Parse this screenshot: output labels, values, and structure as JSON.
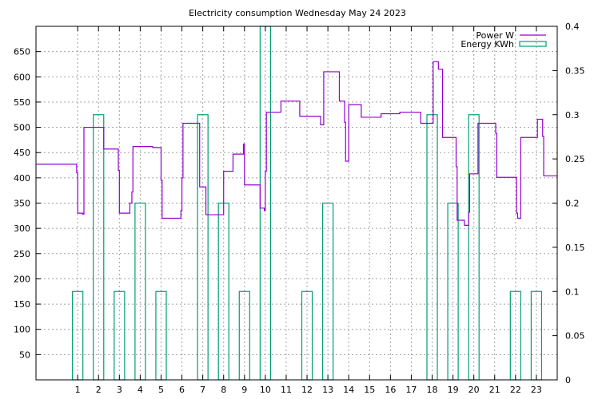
{
  "chart_data": {
    "type": "line",
    "title": "Electricity consumption Wednesday May 24 2023",
    "grid": true,
    "legend_position": "top-right",
    "x_axis": {
      "range": [
        -1,
        24
      ],
      "ticks": [
        1,
        2,
        3,
        4,
        5,
        6,
        7,
        8,
        9,
        10,
        11,
        12,
        13,
        14,
        15,
        16,
        17,
        18,
        19,
        20,
        21,
        22,
        23
      ]
    },
    "y_axis_left": {
      "range": [
        0,
        700
      ],
      "ticks": [
        50,
        100,
        150,
        200,
        250,
        300,
        350,
        400,
        450,
        500,
        550,
        600,
        650
      ]
    },
    "y_axis_right": {
      "range": [
        0,
        0.4
      ],
      "ticks": [
        "0",
        "0.05",
        "0.1",
        "0.15",
        "0.2",
        "0.25",
        "0.3",
        "0.35",
        "0.4"
      ]
    },
    "series": [
      {
        "name": "Power W",
        "axis": "left",
        "style": "steps",
        "color": "#9400d3",
        "points": [
          [
            -1,
            427
          ],
          [
            0.9,
            427
          ],
          [
            0.95,
            410
          ],
          [
            1.0,
            330
          ],
          [
            1.25,
            328
          ],
          [
            1.3,
            500
          ],
          [
            2.2,
            500
          ],
          [
            2.25,
            457
          ],
          [
            2.9,
            457
          ],
          [
            2.95,
            415
          ],
          [
            3.0,
            330
          ],
          [
            3.45,
            330
          ],
          [
            3.5,
            350
          ],
          [
            3.6,
            372
          ],
          [
            3.65,
            462
          ],
          [
            4.55,
            462
          ],
          [
            4.6,
            460
          ],
          [
            4.95,
            460
          ],
          [
            5.0,
            395
          ],
          [
            5.05,
            320
          ],
          [
            5.9,
            320
          ],
          [
            5.95,
            335
          ],
          [
            6.0,
            400
          ],
          [
            6.05,
            508
          ],
          [
            6.8,
            508
          ],
          [
            6.85,
            382
          ],
          [
            7.1,
            382
          ],
          [
            7.15,
            327
          ],
          [
            7.95,
            327
          ],
          [
            8.0,
            413
          ],
          [
            8.4,
            413
          ],
          [
            8.45,
            447
          ],
          [
            8.9,
            447
          ],
          [
            8.95,
            467
          ],
          [
            9.0,
            386
          ],
          [
            9.7,
            386
          ],
          [
            9.75,
            340
          ],
          [
            9.95,
            335
          ],
          [
            10.0,
            413
          ],
          [
            10.05,
            530
          ],
          [
            10.7,
            530
          ],
          [
            10.75,
            552
          ],
          [
            11.6,
            552
          ],
          [
            11.65,
            522
          ],
          [
            12.6,
            522
          ],
          [
            12.65,
            505
          ],
          [
            12.75,
            505
          ],
          [
            12.8,
            610
          ],
          [
            13.5,
            610
          ],
          [
            13.55,
            552
          ],
          [
            13.75,
            552
          ],
          [
            13.8,
            510
          ],
          [
            13.85,
            433
          ],
          [
            13.95,
            433
          ],
          [
            14.0,
            545
          ],
          [
            14.55,
            545
          ],
          [
            14.6,
            520
          ],
          [
            15.5,
            520
          ],
          [
            15.55,
            527
          ],
          [
            16.4,
            527
          ],
          [
            16.45,
            530
          ],
          [
            17.4,
            530
          ],
          [
            17.45,
            508
          ],
          [
            18.0,
            508
          ],
          [
            18.05,
            630
          ],
          [
            18.25,
            630
          ],
          [
            18.3,
            615
          ],
          [
            18.45,
            615
          ],
          [
            18.5,
            480
          ],
          [
            19.1,
            480
          ],
          [
            19.15,
            422
          ],
          [
            19.2,
            316
          ],
          [
            19.5,
            316
          ],
          [
            19.55,
            306
          ],
          [
            19.7,
            306
          ],
          [
            19.75,
            332
          ],
          [
            19.8,
            408
          ],
          [
            20.15,
            408
          ],
          [
            20.2,
            508
          ],
          [
            21.0,
            508
          ],
          [
            21.05,
            488
          ],
          [
            21.1,
            401
          ],
          [
            22.0,
            401
          ],
          [
            22.05,
            330
          ],
          [
            22.1,
            320
          ],
          [
            22.2,
            320
          ],
          [
            22.25,
            480
          ],
          [
            23.0,
            480
          ],
          [
            23.05,
            516
          ],
          [
            23.25,
            516
          ],
          [
            23.3,
            482
          ],
          [
            23.35,
            404
          ],
          [
            24.0,
            404
          ]
        ]
      },
      {
        "name": "Energy KWh",
        "axis": "right",
        "style": "boxes",
        "color": "#009e73",
        "bars": [
          [
            1,
            0.1
          ],
          [
            2,
            0.3
          ],
          [
            3,
            0.1
          ],
          [
            4,
            0.2
          ],
          [
            5,
            0.1
          ],
          [
            7,
            0.3
          ],
          [
            8,
            0.2
          ],
          [
            9,
            0.1
          ],
          [
            10,
            0.4
          ],
          [
            12,
            0.1
          ],
          [
            13,
            0.2
          ],
          [
            18,
            0.3
          ],
          [
            19,
            0.2
          ],
          [
            20,
            0.3
          ],
          [
            22,
            0.1
          ],
          [
            23,
            0.1
          ]
        ]
      }
    ]
  }
}
